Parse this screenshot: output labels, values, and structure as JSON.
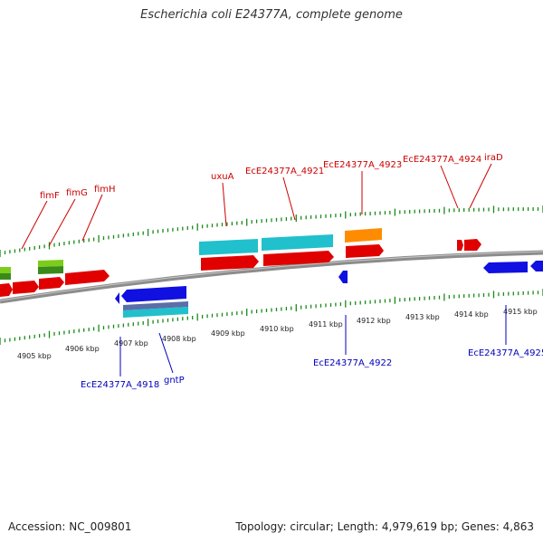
{
  "title": "Escherichia coli E24377A, complete genome",
  "accession": "Accession: NC_009801",
  "stats": "Topology: circular; Length: 4,979,619 bp; Genes: 4,863",
  "colors": {
    "forward_gene": "#e00000",
    "reverse_gene": "#1010e0",
    "cyan_feature": "#20c0cc",
    "orange_feature": "#ff8c00",
    "green_feature": "#7ccc1c",
    "backbone": "#8c8c8c",
    "tick": "#1a8a1a",
    "label_red": "#cc0000",
    "label_blue": "#0000bb"
  },
  "scale": {
    "labels": [
      "4905 kbp",
      "4906 kbp",
      "4907 kbp",
      "4908 kbp",
      "4909 kbp",
      "4910 kbp",
      "4911 kbp",
      "4912 kbp",
      "4913 kbp",
      "4914 kbp",
      "4915 kbp"
    ]
  },
  "gene_labels": {
    "fimF": "fimF",
    "fimG": "fimG",
    "fimH": "fimH",
    "uxuA": "uxuA",
    "g4921": "EcE24377A_4921",
    "g4923": "EcE24377A_4923",
    "g4924": "EcE24377A_4924",
    "iraD": "iraD",
    "g4918": "EcE24377A_4918",
    "gntP": "gntP",
    "g4922": "EcE24377A_4922",
    "g4925": "EcE24377A_4925"
  }
}
